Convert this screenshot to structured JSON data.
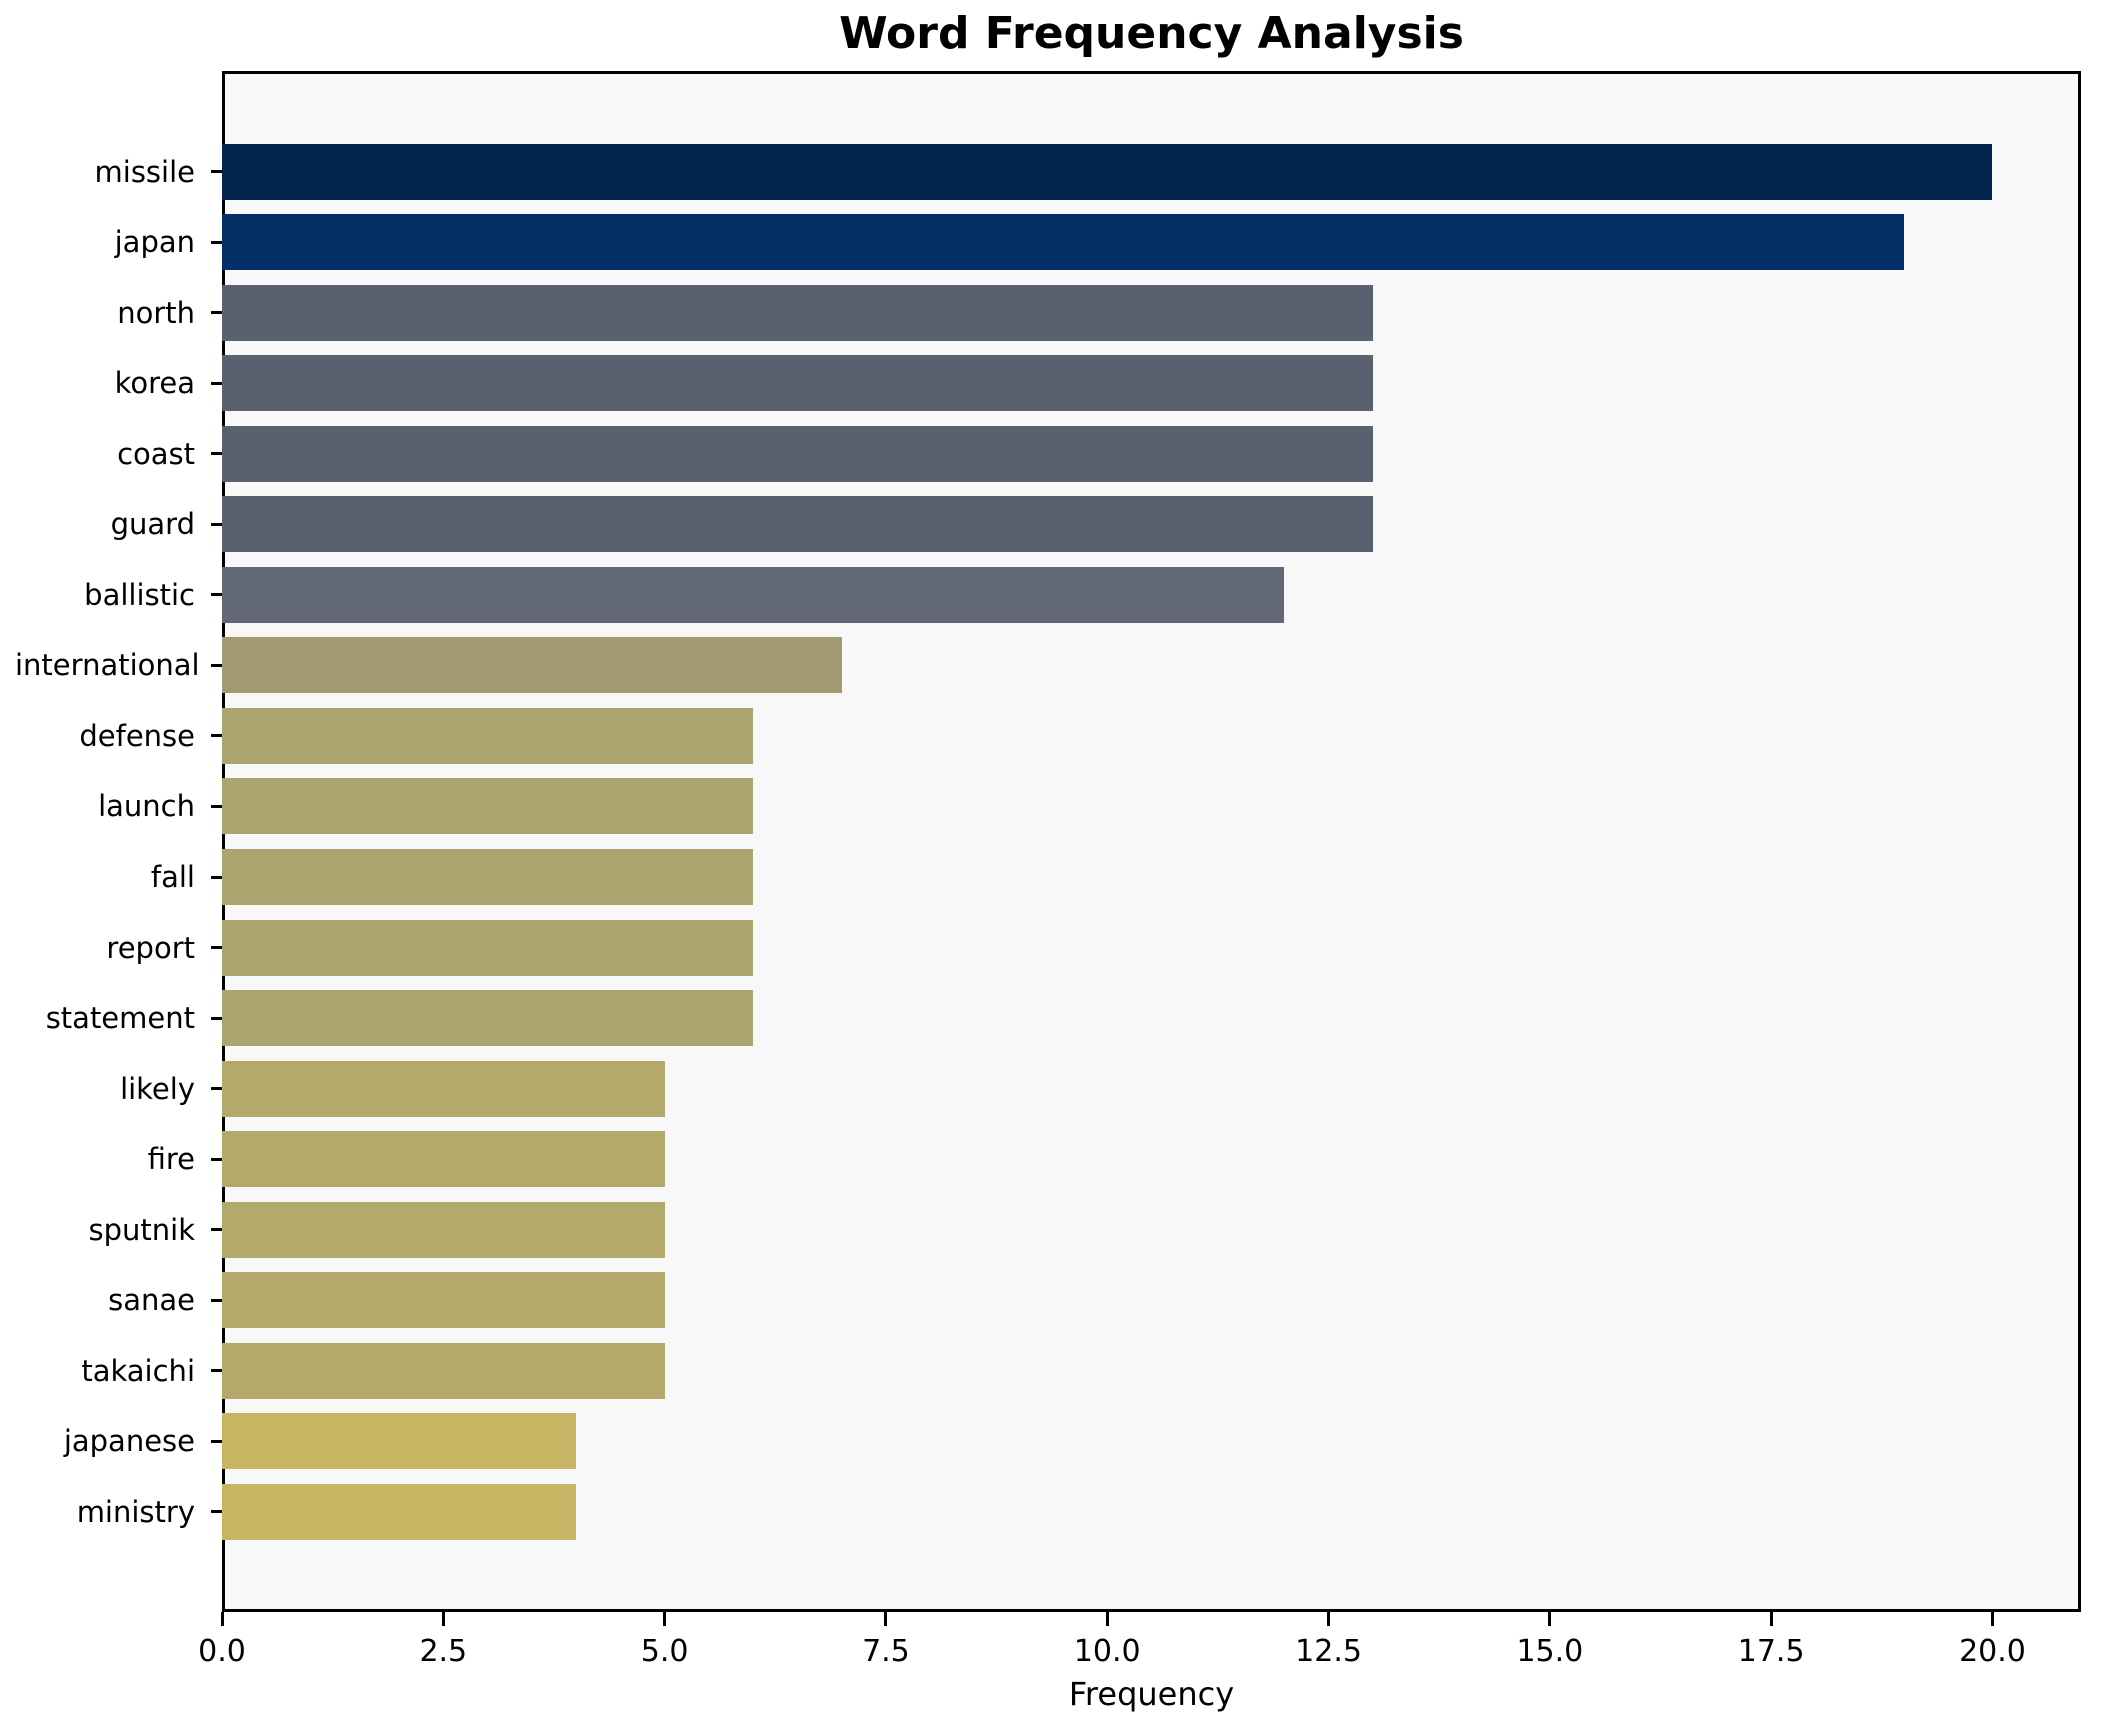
{
  "chart_data": {
    "type": "bar",
    "orientation": "horizontal",
    "title": "Word Frequency Analysis",
    "xlabel": "Frequency",
    "ylabel": "",
    "categories": [
      "missile",
      "japan",
      "north",
      "korea",
      "coast",
      "guard",
      "ballistic",
      "international",
      "defense",
      "launch",
      "fall",
      "report",
      "statement",
      "likely",
      "fire",
      "sputnik",
      "sanae",
      "takaichi",
      "japanese",
      "ministry"
    ],
    "values": [
      20,
      19,
      13,
      13,
      13,
      13,
      12,
      7,
      6,
      6,
      6,
      6,
      6,
      5,
      5,
      5,
      5,
      5,
      4,
      4
    ],
    "bar_colors": [
      "#01234e",
      "#042f66",
      "#596070",
      "#596070",
      "#596070",
      "#596070",
      "#636877",
      "#a29a71",
      "#aca46f",
      "#aca46f",
      "#aca46f",
      "#aca46f",
      "#aca46f",
      "#b3a96b",
      "#b3a96b",
      "#b3a96b",
      "#b3a96b",
      "#b3a96b",
      "#c6b563",
      "#c6b563"
    ],
    "xlim": [
      0,
      21
    ],
    "x_tick_values": [
      0,
      2.5,
      5,
      7.5,
      10,
      12.5,
      15,
      17.5,
      20
    ],
    "x_tick_labels": [
      "0.0",
      "2.5",
      "5.0",
      "7.5",
      "10.0",
      "12.5",
      "15.0",
      "17.5",
      "20.0"
    ],
    "grid": false,
    "legend": null,
    "colors": {
      "figure_background": "#ffffff",
      "plot_background": "#f7f8f7",
      "spine": "#000000",
      "text": "#000000"
    }
  }
}
